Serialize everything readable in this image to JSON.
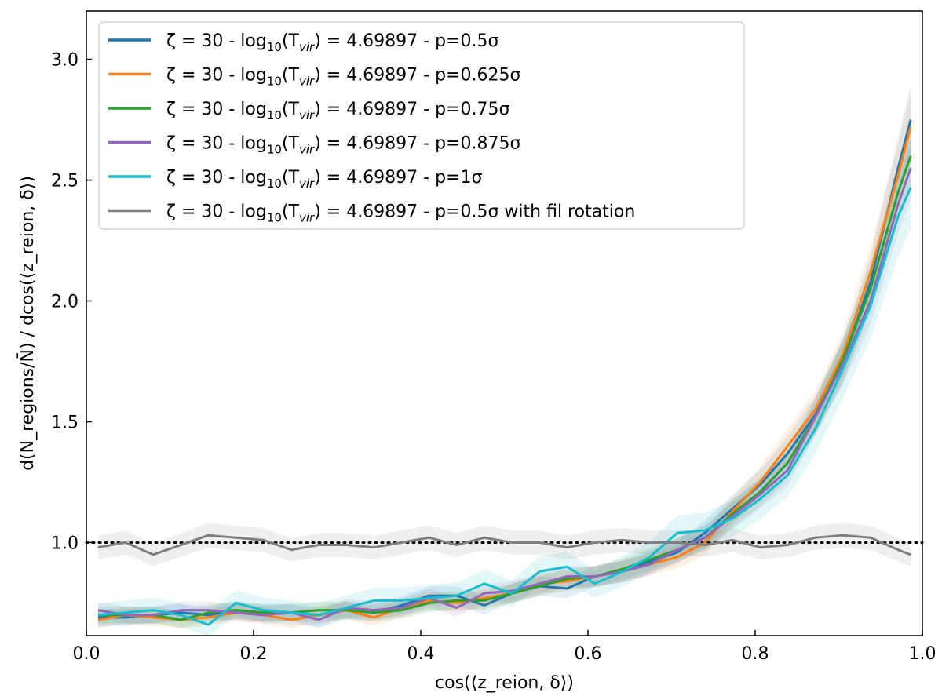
{
  "chart_data": {
    "type": "line",
    "title": "",
    "xlabel": "cos(⟨z_reion, δ⟩)",
    "ylabel": "d(N_regions/N̄) / dcos(⟨z_reion, δ⟩)",
    "xlim": [
      0.0,
      1.0
    ],
    "ylim": [
      0.615,
      3.2
    ],
    "xticks": [
      0.0,
      0.2,
      0.4,
      0.6,
      0.8,
      1.0
    ],
    "xtick_labels": [
      "0.0",
      "0.2",
      "0.4",
      "0.6",
      "0.8",
      "1.0"
    ],
    "yticks": [
      1.0,
      1.5,
      2.0,
      2.5,
      3.0
    ],
    "ytick_labels": [
      "1.0",
      "1.5",
      "2.0",
      "2.5",
      "3.0"
    ],
    "grid": false,
    "legend_position": "top-left",
    "reference_line": {
      "y": 1.0,
      "style": "dotted",
      "color": "#000000"
    },
    "x": [
      0.014,
      0.047,
      0.08,
      0.113,
      0.146,
      0.179,
      0.212,
      0.245,
      0.278,
      0.311,
      0.344,
      0.377,
      0.41,
      0.443,
      0.476,
      0.509,
      0.542,
      0.575,
      0.608,
      0.641,
      0.674,
      0.707,
      0.74,
      0.773,
      0.806,
      0.839,
      0.872,
      0.905,
      0.938,
      0.971,
      0.986
    ],
    "series": [
      {
        "name": "ζ = 30 - log10(Tvir) = 4.69897 - p=0.5σ",
        "legend_prefix": "ζ = 30 - log",
        "legend_sub": "10",
        "legend_mid": "(T",
        "legend_var_sub": "vir",
        "legend_suffix": ") = 4.69897 - p=0.5σ",
        "color": "#1f77b4",
        "band": 0.05,
        "values": [
          0.69,
          0.69,
          0.7,
          0.71,
          0.7,
          0.72,
          0.71,
          0.71,
          0.7,
          0.72,
          0.71,
          0.74,
          0.78,
          0.78,
          0.74,
          0.79,
          0.82,
          0.81,
          0.86,
          0.88,
          0.92,
          0.96,
          1.04,
          1.14,
          1.24,
          1.37,
          1.53,
          1.75,
          2.08,
          2.55,
          2.75
        ]
      },
      {
        "name": "ζ = 30 - log10(Tvir) = 4.69897 - p=0.625σ",
        "legend_prefix": "ζ = 30 - log",
        "legend_sub": "10",
        "legend_mid": "(T",
        "legend_var_sub": "vir",
        "legend_suffix": ") = 4.69897 - p=0.625σ",
        "color": "#ff7f0e",
        "band": 0.05,
        "values": [
          0.68,
          0.7,
          0.69,
          0.68,
          0.69,
          0.71,
          0.7,
          0.68,
          0.7,
          0.72,
          0.69,
          0.73,
          0.76,
          0.75,
          0.77,
          0.79,
          0.83,
          0.84,
          0.86,
          0.88,
          0.91,
          0.94,
          1.0,
          1.13,
          1.25,
          1.4,
          1.55,
          1.78,
          2.12,
          2.52,
          2.72
        ]
      },
      {
        "name": "ζ = 30 - log10(Tvir) = 4.69897 - p=0.75σ",
        "legend_prefix": "ζ = 30 - log",
        "legend_sub": "10",
        "legend_mid": "(T",
        "legend_var_sub": "vir",
        "legend_suffix": ") = 4.69897 - p=0.75σ",
        "color": "#2ca02c",
        "band": 0.05,
        "values": [
          0.7,
          0.7,
          0.7,
          0.68,
          0.71,
          0.72,
          0.71,
          0.71,
          0.72,
          0.72,
          0.71,
          0.72,
          0.75,
          0.76,
          0.76,
          0.79,
          0.82,
          0.85,
          0.86,
          0.89,
          0.93,
          0.97,
          1.02,
          1.12,
          1.21,
          1.33,
          1.52,
          1.76,
          2.05,
          2.45,
          2.6
        ]
      },
      {
        "name": "ζ = 30 - log10(Tvir) = 4.69897 - p=0.875σ",
        "legend_prefix": "ζ = 30 - log",
        "legend_sub": "10",
        "legend_mid": "(T",
        "legend_var_sub": "vir",
        "legend_suffix": ") = 4.69897 - p=0.875σ",
        "color": "#9467bd",
        "band": 0.05,
        "values": [
          0.72,
          0.7,
          0.7,
          0.72,
          0.72,
          0.71,
          0.7,
          0.71,
          0.68,
          0.73,
          0.72,
          0.73,
          0.77,
          0.73,
          0.79,
          0.8,
          0.83,
          0.86,
          0.86,
          0.88,
          0.91,
          0.97,
          1.02,
          1.11,
          1.2,
          1.3,
          1.52,
          1.74,
          2.0,
          2.4,
          2.55
        ]
      },
      {
        "name": "ζ = 30 - log10(Tvir) = 4.69897 - p=1σ",
        "legend_prefix": "ζ = 30 - log",
        "legend_sub": "10",
        "legend_mid": "(T",
        "legend_var_sub": "vir",
        "legend_suffix": ") = 4.69897 - p=1σ",
        "color": "#17becf",
        "band": 0.07,
        "values": [
          0.7,
          0.71,
          0.72,
          0.7,
          0.66,
          0.75,
          0.72,
          0.71,
          0.7,
          0.73,
          0.76,
          0.76,
          0.77,
          0.78,
          0.83,
          0.79,
          0.88,
          0.9,
          0.83,
          0.88,
          0.94,
          1.04,
          1.05,
          1.1,
          1.18,
          1.28,
          1.47,
          1.72,
          1.98,
          2.35,
          2.47
        ]
      },
      {
        "name": "ζ = 30 - log10(Tvir) = 4.69897 - p=0.5σ with fil rotation",
        "legend_prefix": "ζ = 30 - log",
        "legend_sub": "10",
        "legend_mid": "(T",
        "legend_var_sub": "vir",
        "legend_suffix": ") = 4.69897 - p=0.5σ with fil rotation",
        "color": "#7f7f7f",
        "band": 0.05,
        "values": [
          0.98,
          1.0,
          0.95,
          0.99,
          1.03,
          1.02,
          1.01,
          0.97,
          0.99,
          0.99,
          0.98,
          1.0,
          1.02,
          0.99,
          1.02,
          1.0,
          1.0,
          0.98,
          1.0,
          1.01,
          1.0,
          1.0,
          0.99,
          1.01,
          0.98,
          0.99,
          1.02,
          1.03,
          1.02,
          0.97,
          0.95
        ]
      }
    ]
  }
}
